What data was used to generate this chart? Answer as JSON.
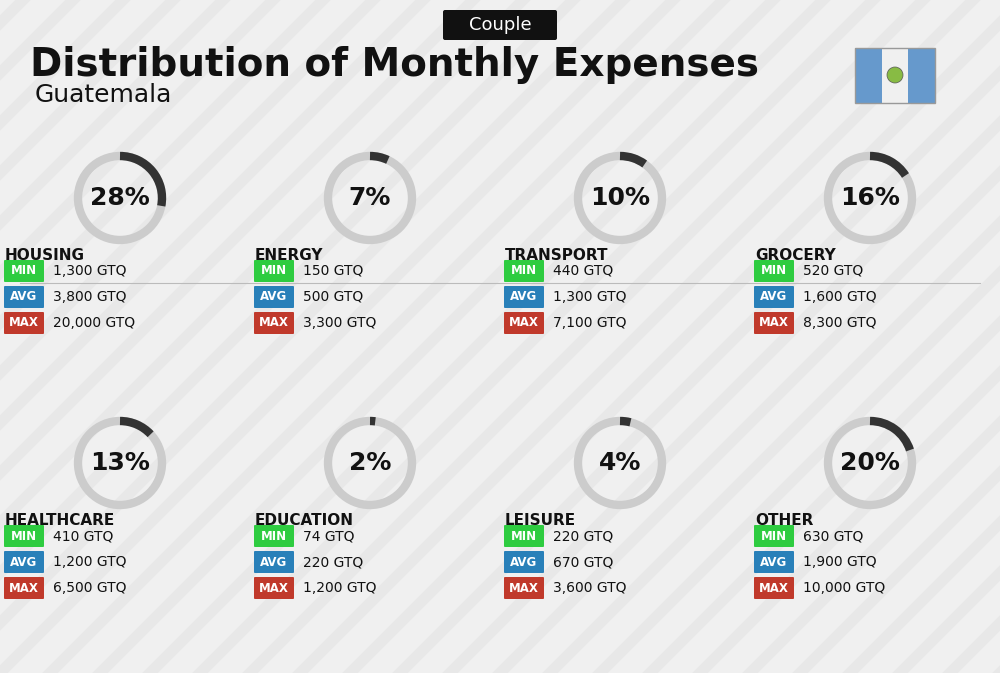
{
  "title": "Distribution of Monthly Expenses",
  "subtitle": "Guatemala",
  "badge": "Couple",
  "bg_color": "#f0f0f0",
  "categories": [
    {
      "name": "HOUSING",
      "pct": 28,
      "min": "1,300 GTQ",
      "avg": "3,800 GTQ",
      "max": "20,000 GTQ",
      "col": 0,
      "row": 0
    },
    {
      "name": "ENERGY",
      "pct": 7,
      "min": "150 GTQ",
      "avg": "500 GTQ",
      "max": "3,300 GTQ",
      "col": 1,
      "row": 0
    },
    {
      "name": "TRANSPORT",
      "pct": 10,
      "min": "440 GTQ",
      "avg": "1,300 GTQ",
      "max": "7,100 GTQ",
      "col": 2,
      "row": 0
    },
    {
      "name": "GROCERY",
      "pct": 16,
      "min": "520 GTQ",
      "avg": "1,600 GTQ",
      "max": "8,300 GTQ",
      "col": 3,
      "row": 0
    },
    {
      "name": "HEALTHCARE",
      "pct": 13,
      "min": "410 GTQ",
      "avg": "1,200 GTQ",
      "max": "6,500 GTQ",
      "col": 0,
      "row": 1
    },
    {
      "name": "EDUCATION",
      "pct": 2,
      "min": "74 GTQ",
      "avg": "220 GTQ",
      "max": "1,200 GTQ",
      "col": 1,
      "row": 1
    },
    {
      "name": "LEISURE",
      "pct": 4,
      "min": "220 GTQ",
      "avg": "670 GTQ",
      "max": "3,600 GTQ",
      "col": 2,
      "row": 1
    },
    {
      "name": "OTHER",
      "pct": 20,
      "min": "630 GTQ",
      "avg": "1,900 GTQ",
      "max": "10,000 GTQ",
      "col": 3,
      "row": 1
    }
  ],
  "min_color": "#2ecc40",
  "avg_color": "#2980b9",
  "max_color": "#c0392b",
  "label_color": "#ffffff",
  "arc_color": "#333333",
  "arc_bg_color": "#cccccc",
  "text_color": "#111111",
  "title_fontsize": 28,
  "subtitle_fontsize": 18,
  "badge_fontsize": 13,
  "category_fontsize": 11,
  "pct_fontsize": 18,
  "value_fontsize": 10,
  "flag_colors": [
    "#4a90d9",
    "#ffffff",
    "#4a90d9"
  ]
}
